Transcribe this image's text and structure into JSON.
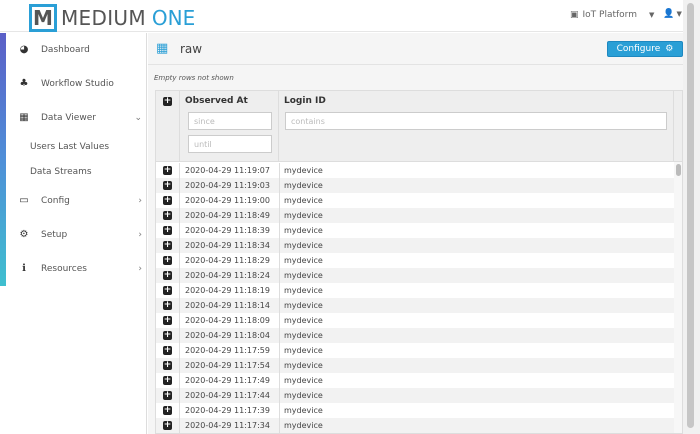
{
  "header": {
    "logo_letter": "M",
    "logo_text1": "MEDIUM",
    "logo_text2": "ONE",
    "platform": "IoT Platform"
  },
  "colors": {
    "accent": "#2a9fd6"
  },
  "sidebar": {
    "items": [
      {
        "label": "Dashboard",
        "icon": "dashboard-icon"
      },
      {
        "label": "Workflow Studio",
        "icon": "sitemap-icon"
      },
      {
        "label": "Data Viewer",
        "icon": "table-icon"
      },
      {
        "label": "Config",
        "icon": "desktop-icon"
      },
      {
        "label": "Setup",
        "icon": "cogs-icon"
      },
      {
        "label": "Resources",
        "icon": "info-icon"
      }
    ],
    "sub_items": [
      "Users Last Values",
      "Data Streams"
    ]
  },
  "main": {
    "title": "raw",
    "configure": "Configure",
    "note": "Empty rows not shown",
    "columns": [
      "Observed At",
      "Login ID"
    ],
    "filters": {
      "since": "since",
      "until": "until",
      "contains": "contains"
    },
    "rows": [
      [
        "2020-04-29 11:19:07",
        "mydevice"
      ],
      [
        "2020-04-29 11:19:03",
        "mydevice"
      ],
      [
        "2020-04-29 11:19:00",
        "mydevice"
      ],
      [
        "2020-04-29 11:18:49",
        "mydevice"
      ],
      [
        "2020-04-29 11:18:39",
        "mydevice"
      ],
      [
        "2020-04-29 11:18:34",
        "mydevice"
      ],
      [
        "2020-04-29 11:18:29",
        "mydevice"
      ],
      [
        "2020-04-29 11:18:24",
        "mydevice"
      ],
      [
        "2020-04-29 11:18:19",
        "mydevice"
      ],
      [
        "2020-04-29 11:18:14",
        "mydevice"
      ],
      [
        "2020-04-29 11:18:09",
        "mydevice"
      ],
      [
        "2020-04-29 11:18:04",
        "mydevice"
      ],
      [
        "2020-04-29 11:17:59",
        "mydevice"
      ],
      [
        "2020-04-29 11:17:54",
        "mydevice"
      ],
      [
        "2020-04-29 11:17:49",
        "mydevice"
      ],
      [
        "2020-04-29 11:17:44",
        "mydevice"
      ],
      [
        "2020-04-29 11:17:39",
        "mydevice"
      ],
      [
        "2020-04-29 11:17:34",
        "mydevice"
      ]
    ]
  }
}
